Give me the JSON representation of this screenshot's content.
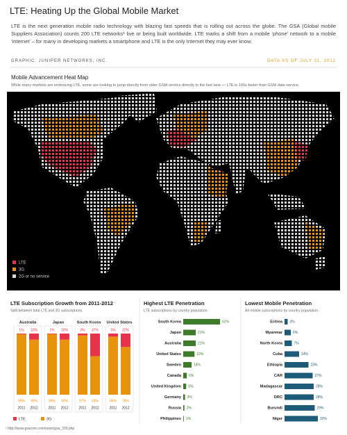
{
  "header": {
    "title": "LTE: Heating Up the Global Mobile Market",
    "intro": "LTE is the next generation mobile radio technology with blazing fast speeds that is rolling out across the globe. The GSA (Global mobile Suppliers Association) counts 200 LTE networks¹ live or being built worldwide.  LTE marks a shift from a mobile ‘phone’ network to a mobile ‘internet’ – for many in developing markets a smartphone and LTE is the only Internet they may ever know.",
    "credit": "GRAPHIC: JUNIPER NETWORKS, INC.",
    "date": "DATA AS OF JULY 31, 2012"
  },
  "map": {
    "title": "Mobile Advancement Heat Map",
    "subtitle": "While many markets are embracing LTE, some are looking to jump directly from older GSM service directly to the fast lane — LTE is 100x faster than GSM data service.",
    "legend": [
      "LTE",
      "3G",
      "2G or no service"
    ]
  },
  "chart_data": [
    {
      "type": "stacked-bar",
      "title": "LTE Subscription Growth from 2011-2012",
      "subtitle": "Split between total LTE and 3G subscriptions.",
      "groups": [
        "Australia",
        "Japan",
        "South Korea",
        "United States"
      ],
      "categories": [
        "2011",
        "2012",
        "2011",
        "2012",
        "2011",
        "2012",
        "2011",
        "2012"
      ],
      "ylim": [
        0,
        100
      ],
      "series": [
        {
          "name": "LTE",
          "color": "#e8344a",
          "values": [
            1,
            10,
            1,
            10,
            3,
            37,
            5,
            22
          ],
          "value_labels": [
            "1%",
            "10%",
            "1%",
            "10%",
            "3%",
            "37%",
            "5%",
            "22%"
          ]
        },
        {
          "name": "3G",
          "color": "#e8930c",
          "values": [
            99,
            90,
            99,
            90,
            97,
            63,
            95,
            78
          ],
          "value_labels": [
            "99%",
            "90%",
            "99%",
            "90%",
            "97%",
            "63%",
            "95%",
            "78%"
          ]
        }
      ]
    },
    {
      "type": "hbar",
      "title": "Highest LTE Penetration",
      "subtitle": "LTE subscriptions by country population.",
      "categories": [
        "South Korea",
        "Japan",
        "Australia",
        "United States",
        "Sweden",
        "Canada",
        "United Kingdom",
        "Germany",
        "Russia",
        "Philippines"
      ],
      "values": [
        62,
        21,
        21,
        19,
        14,
        6,
        5,
        3,
        2,
        1
      ],
      "value_labels": [
        "62%",
        "21%",
        "21%",
        "19%",
        "14%",
        "6%",
        "5%",
        "3%",
        "2%",
        "1%"
      ],
      "color": "#3d7a2a",
      "xlim": [
        0,
        70
      ]
    },
    {
      "type": "hbar",
      "title": "Lowest Mobile  Penetration",
      "subtitle": "All mobile subscriptions by country population.",
      "categories": [
        "Eritrea",
        "Myanmar",
        "North Korea",
        "Cuba",
        "Ethiopia",
        "CAR",
        "Madagascar",
        "DRC",
        "Burundi",
        "Niger"
      ],
      "values": [
        3,
        6,
        7,
        14,
        23,
        27,
        28,
        28,
        29,
        32
      ],
      "value_labels": [
        "3%",
        "6%",
        "7%",
        "14%",
        "23%",
        "27%",
        "28%",
        "28%",
        "29%",
        "32%"
      ],
      "color": "#1d5b78",
      "xlim": [
        0,
        40
      ]
    }
  ],
  "footer": "¹ http://www.gsacom.com/news/gsa_330.php"
}
